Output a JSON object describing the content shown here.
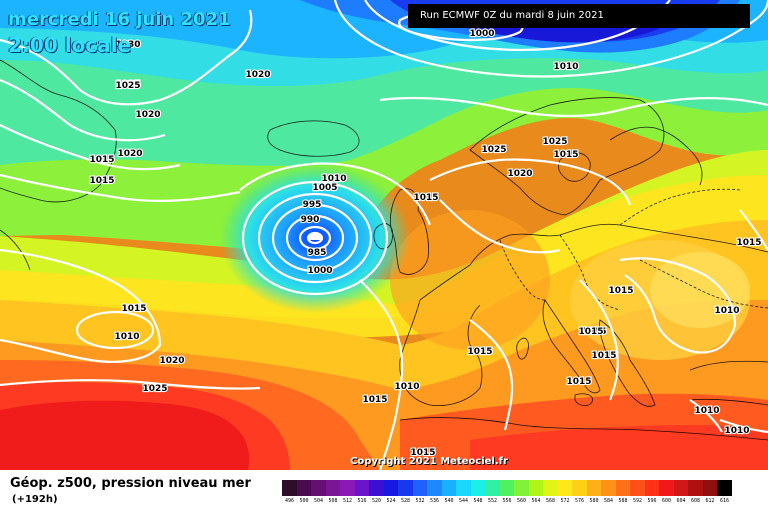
{
  "header": {
    "date": "mercredi 16 juin 2021",
    "local_time": "2:00 locale",
    "run": "Run ECMWF 0Z du mardi 8 juin 2021"
  },
  "map": {
    "copyright": "Copyright 2021 Meteociel.fr",
    "isobar_color": "#ffffff",
    "low_center_pressure": "985",
    "pressure_labels": [
      "1030",
      "1020",
      "1025",
      "1020",
      "1015",
      "1020",
      "1015",
      "1000",
      "1005",
      "1010",
      "1025",
      "1025",
      "1020",
      "1025",
      "1010",
      "1005",
      "995",
      "990",
      "985",
      "1000",
      "1015",
      "1015",
      "1015",
      "1010",
      "1015",
      "1015",
      "1020",
      "1025",
      "1015",
      "1015",
      "1010",
      "1015",
      "1015",
      "1015",
      "1010",
      "1010",
      "1015",
      "1010",
      "1015"
    ]
  },
  "legend": {
    "field": "Géop. z500, pression niveau mer",
    "forecast_hour": "(+192h)",
    "scale_values": [
      "496",
      "500",
      "504",
      "508",
      "512",
      "516",
      "520",
      "524",
      "528",
      "532",
      "536",
      "540",
      "544",
      "548",
      "552",
      "556",
      "560",
      "564",
      "568",
      "572",
      "576",
      "580",
      "584",
      "588",
      "592",
      "596",
      "600",
      "604",
      "608",
      "612",
      "616"
    ],
    "scale_colors": [
      "#2c0d2a",
      "#4a0c4e",
      "#660f73",
      "#7a1594",
      "#8a1ab5",
      "#6a16c8",
      "#3b10d2",
      "#1818e0",
      "#1838f0",
      "#1f60ff",
      "#1e88ff",
      "#18b0ff",
      "#18d8ff",
      "#1af0e6",
      "#30f0a4",
      "#50f064",
      "#80f238",
      "#b0f418",
      "#e0f418",
      "#ffe818",
      "#ffd018",
      "#ffb018",
      "#ff9018",
      "#ff7018",
      "#ff5018",
      "#ff3218",
      "#f01818",
      "#d01818",
      "#b01010",
      "#901010",
      "#000000"
    ]
  }
}
